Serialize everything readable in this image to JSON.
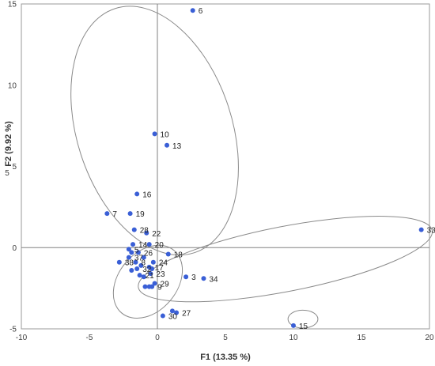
{
  "chart_data": {
    "type": "scatter",
    "xlabel": "F1 (13.35 %)",
    "ylabel": "F2 (9.92 %)",
    "ylabel_prefix": "5",
    "xlim": [
      -10,
      20
    ],
    "ylim": [
      -5,
      15
    ],
    "x_ticks": [
      -10,
      -5,
      0,
      5,
      10,
      15,
      20
    ],
    "y_ticks": [
      -5,
      0,
      5,
      10,
      15
    ],
    "grid": false,
    "legend": "none",
    "colors": {
      "point": "#3a5fd6",
      "axis": "#808080",
      "ellipse": "#8a8a8a",
      "frame": "#9a9a9a"
    },
    "points": [
      {
        "label": "6",
        "x": 2.6,
        "y": 14.6
      },
      {
        "label": "10",
        "x": -0.2,
        "y": 7.0
      },
      {
        "label": "13",
        "x": 0.7,
        "y": 6.3
      },
      {
        "label": "16",
        "x": -1.5,
        "y": 3.3
      },
      {
        "label": "7",
        "x": -3.7,
        "y": 2.1
      },
      {
        "label": "19",
        "x": -2.0,
        "y": 2.1
      },
      {
        "label": "28",
        "x": -1.7,
        "y": 1.1
      },
      {
        "label": "22",
        "x": -0.8,
        "y": 0.9
      },
      {
        "label": "14",
        "x": -1.8,
        "y": 0.2
      },
      {
        "label": "20",
        "x": -0.6,
        "y": 0.2
      },
      {
        "label": "5",
        "x": -2.1,
        "y": -0.1
      },
      {
        "label": "26",
        "x": -1.4,
        "y": -0.3
      },
      {
        "label": "37",
        "x": -2.1,
        "y": -0.6
      },
      {
        "label": "38",
        "x": -2.8,
        "y": -0.9
      },
      {
        "label": "8",
        "x": -1.6,
        "y": -0.9
      },
      {
        "label": "24",
        "x": -0.3,
        "y": -0.9
      },
      {
        "label": "32",
        "x": -1.5,
        "y": -1.3
      },
      {
        "label": "17",
        "x": -0.6,
        "y": -1.2
      },
      {
        "label": "23",
        "x": -0.5,
        "y": -1.6
      },
      {
        "label": "21",
        "x": -1.3,
        "y": -1.7
      },
      {
        "label": "29",
        "x": -0.2,
        "y": -2.2
      },
      {
        "label": "9",
        "x": -0.4,
        "y": -2.4
      },
      {
        "label": "18",
        "x": 0.8,
        "y": -0.4
      },
      {
        "label": "3",
        "x": 2.1,
        "y": -1.8
      },
      {
        "label": "34",
        "x": 3.4,
        "y": -1.9
      },
      {
        "label": "33",
        "x": 19.4,
        "y": 1.1
      },
      {
        "label": "27",
        "x": 1.4,
        "y": -4.0
      },
      {
        "label": "30",
        "x": 0.4,
        "y": -4.2
      },
      {
        "label": "15",
        "x": 10.0,
        "y": -4.8
      }
    ],
    "unlabeled_points": [
      {
        "x": -1.9,
        "y": -0.3
      },
      {
        "x": -1.0,
        "y": -0.6
      },
      {
        "x": -1.2,
        "y": -1.1
      },
      {
        "x": -1.9,
        "y": -1.4
      },
      {
        "x": -1.0,
        "y": -1.8
      },
      {
        "x": -0.9,
        "y": -2.4
      },
      {
        "x": -0.6,
        "y": -2.4
      },
      {
        "x": -0.4,
        "y": -1.3
      },
      {
        "x": 1.1,
        "y": -3.9
      }
    ],
    "ellipses": [
      {
        "cx": -0.2,
        "cy": 7.2,
        "rx": 5.7,
        "ry": 7.9,
        "angle": 18
      },
      {
        "cx": 9.4,
        "cy": -0.7,
        "rx": 11.0,
        "ry": 2.0,
        "angle": 11
      },
      {
        "cx": -0.7,
        "cy": -2.1,
        "rx": 3.0,
        "ry": 1.8,
        "angle": 50
      },
      {
        "cx": 10.7,
        "cy": -4.4,
        "rx": 1.1,
        "ry": 0.55,
        "angle": 0
      }
    ]
  }
}
